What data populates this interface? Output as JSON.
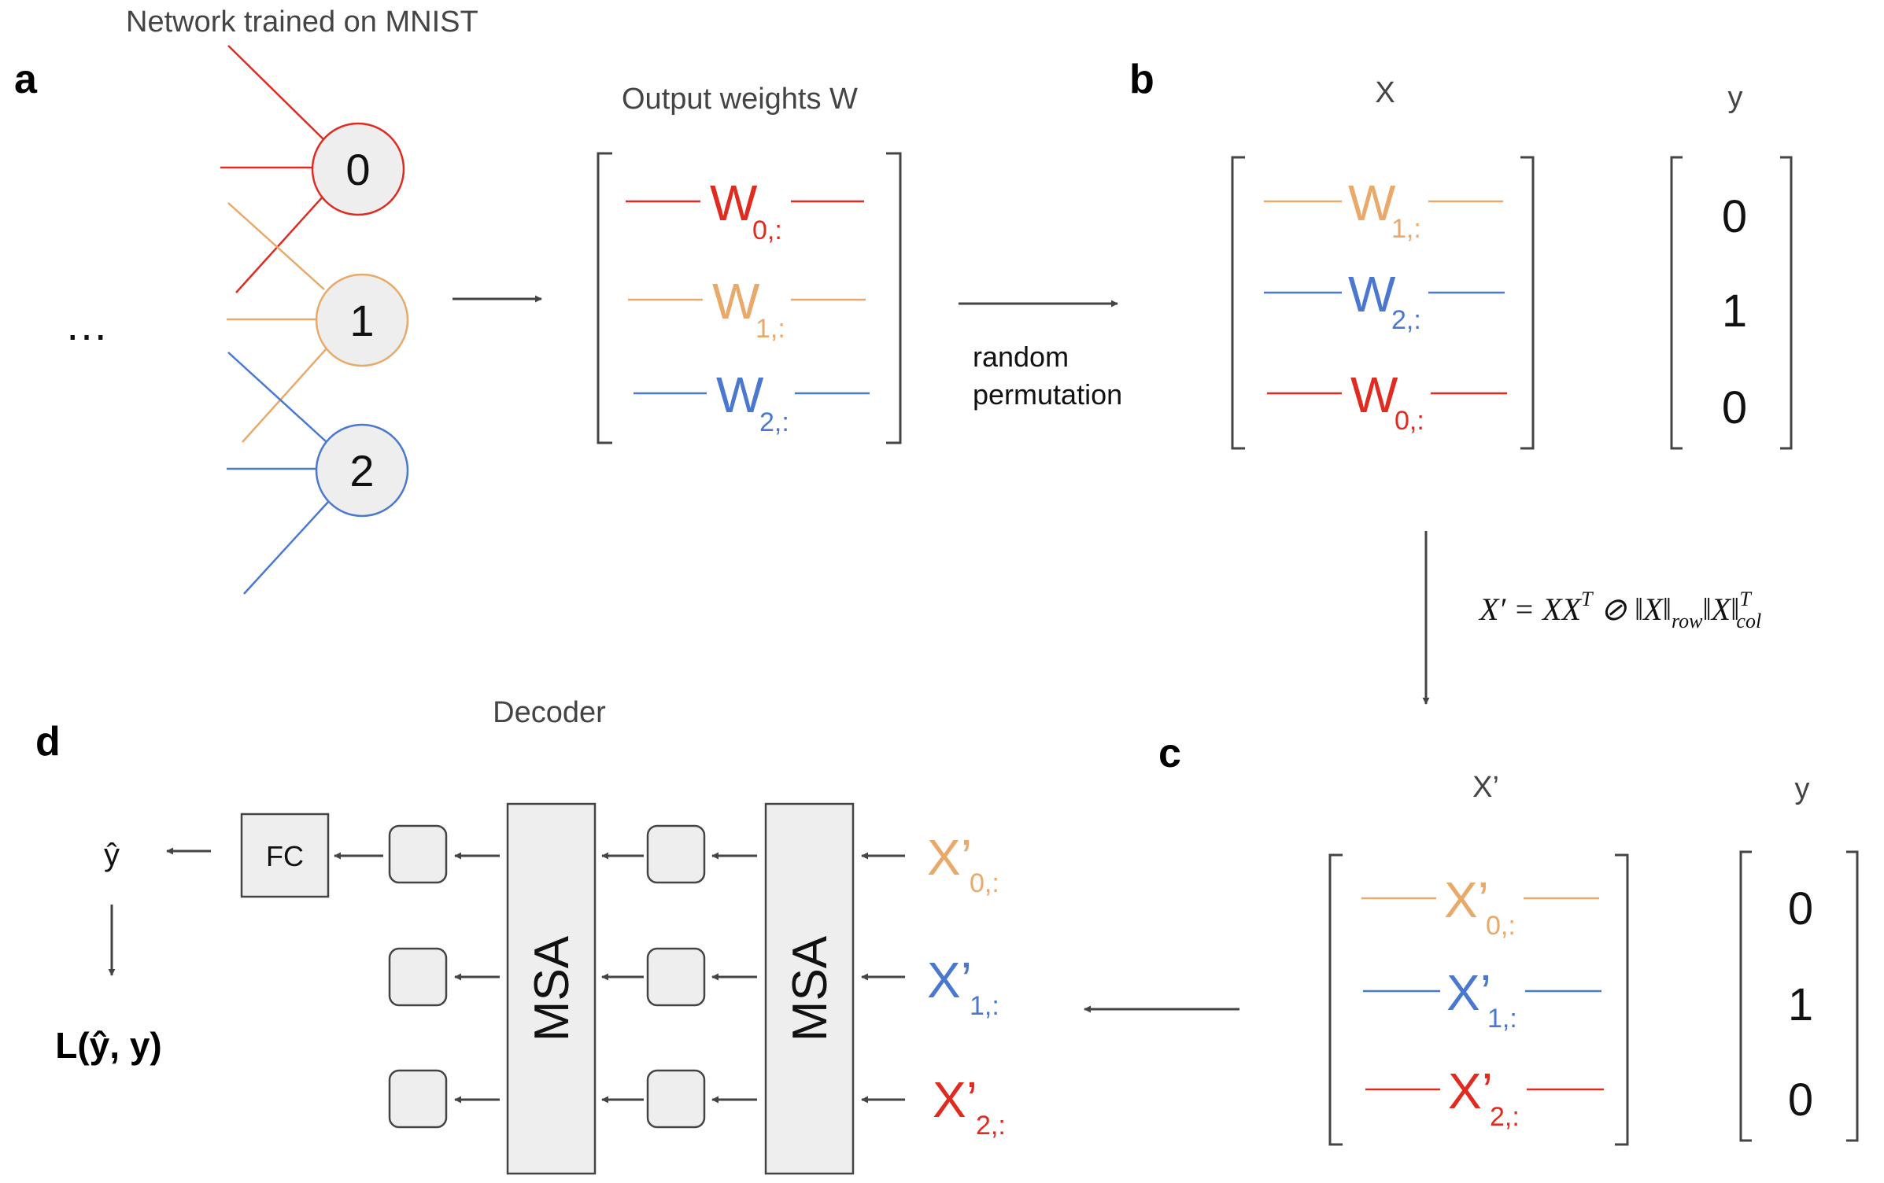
{
  "colors": {
    "red": "#e02b20",
    "orange": "#e8a96a",
    "blue": "#4a78cf",
    "node_fill": "#eeeeee",
    "line": "#444444"
  },
  "panel_a": {
    "label": "a",
    "title": "Network trained on MNIST",
    "ellipsis": "…",
    "nodes": [
      "0",
      "1",
      "2"
    ],
    "matrix_title": "Output weights W",
    "rows": [
      {
        "main": "W",
        "sub": "0,:",
        "color": "red"
      },
      {
        "main": "W",
        "sub": "1,:",
        "color": "orange"
      },
      {
        "main": "W",
        "sub": "2,:",
        "color": "blue"
      }
    ],
    "arrow_caption_line1": "random",
    "arrow_caption_line2": "permutation"
  },
  "panel_b": {
    "label": "b",
    "x_title": "X",
    "y_title": "y",
    "rows": [
      {
        "main": "W",
        "sub": "1,:",
        "color": "orange"
      },
      {
        "main": "W",
        "sub": "2,:",
        "color": "blue"
      },
      {
        "main": "W",
        "sub": "0,:",
        "color": "red"
      }
    ],
    "y_values": [
      "0",
      "1",
      "0"
    ],
    "formula_left": "X′ = XX",
    "formula_sup_t": "T",
    "formula_mid": " ⊘ ‖X‖",
    "formula_sub_row": "row",
    "formula_mid2": "‖X‖",
    "formula_sub_col": "col",
    "formula_sup_t2": "T"
  },
  "panel_c": {
    "label": "c",
    "x_title": "X’",
    "y_title": "y",
    "rows": [
      {
        "main": "X’",
        "sub": "0,:",
        "color": "orange"
      },
      {
        "main": "X’",
        "sub": "1,:",
        "color": "blue"
      },
      {
        "main": "X’",
        "sub": "2,:",
        "color": "red"
      }
    ],
    "y_values": [
      "0",
      "1",
      "0"
    ]
  },
  "panel_d": {
    "label": "d",
    "title": "Decoder",
    "inputs": [
      {
        "main": "X’",
        "sub": "0,:",
        "color": "orange"
      },
      {
        "main": "X’",
        "sub": "1,:",
        "color": "blue"
      },
      {
        "main": "X’",
        "sub": "2,:",
        "color": "red"
      }
    ],
    "msa_label": "MSA",
    "fc_label": "FC",
    "yhat": "ŷ",
    "loss": "L(ŷ, y)"
  }
}
